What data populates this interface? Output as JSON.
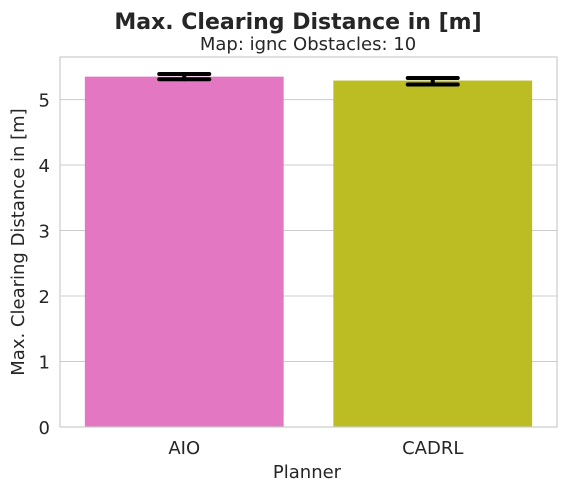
{
  "chart_data": {
    "type": "bar",
    "title": "Max. Clearing Distance in [m]",
    "subtitle": "Map: ignc Obstacles: 10",
    "xlabel": "Planner",
    "ylabel": "Max. Clearing Distance in [m]",
    "categories": [
      "AIO",
      "CADRL"
    ],
    "values": [
      5.35,
      5.29
    ],
    "error_low": [
      5.31,
      5.23
    ],
    "error_high": [
      5.39,
      5.33
    ],
    "colors": [
      "#e377c2",
      "#bcbd22"
    ],
    "ylim": [
      0,
      5.65
    ],
    "yticks": [
      0,
      1,
      2,
      3,
      4,
      5
    ],
    "grid": true,
    "legend": "none"
  }
}
